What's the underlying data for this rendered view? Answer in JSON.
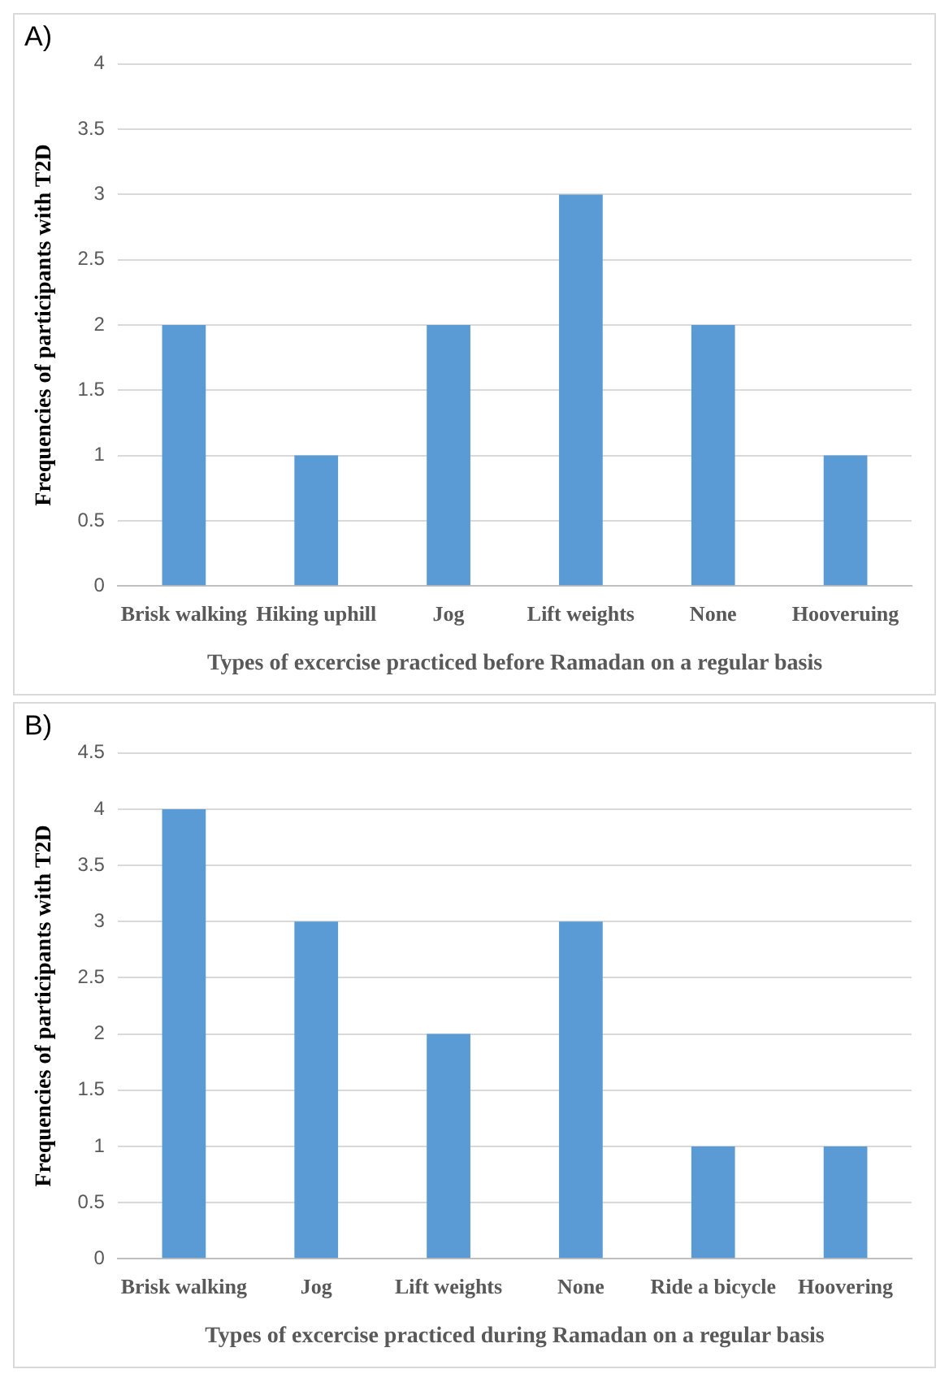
{
  "chart_data": [
    {
      "type": "bar",
      "title": "A)",
      "xlabel": "Types of excercise practiced before Ramadan on a regular basis",
      "ylabel": "Frequencies of participants with T2D",
      "categories": [
        "Brisk walking",
        "Hiking uphill",
        "Jog",
        "Lift weights",
        "None",
        "Hooveruing"
      ],
      "values": [
        2,
        1,
        2,
        3,
        2,
        1
      ],
      "color": "#5b9bd5",
      "ylim": [
        0,
        4
      ],
      "yticks": [
        0,
        0.5,
        1,
        1.5,
        2,
        2.5,
        3,
        3.5,
        4
      ],
      "grid": "y",
      "legend": false
    },
    {
      "type": "bar",
      "title": "B)",
      "xlabel": "Types of excercise practiced during Ramadan on a regular basis",
      "ylabel": "Frequencies of participants with T2D",
      "categories": [
        "Brisk walking",
        "Jog",
        "Lift weights",
        "None",
        "Ride a bicycle",
        "Hoovering"
      ],
      "values": [
        4,
        3,
        2,
        3,
        1,
        1
      ],
      "color": "#5b9bd5",
      "ylim": [
        0,
        4.5
      ],
      "yticks": [
        0,
        0.5,
        1,
        1.5,
        2,
        2.5,
        3,
        3.5,
        4,
        4.5
      ],
      "grid": "y",
      "legend": false
    }
  ]
}
